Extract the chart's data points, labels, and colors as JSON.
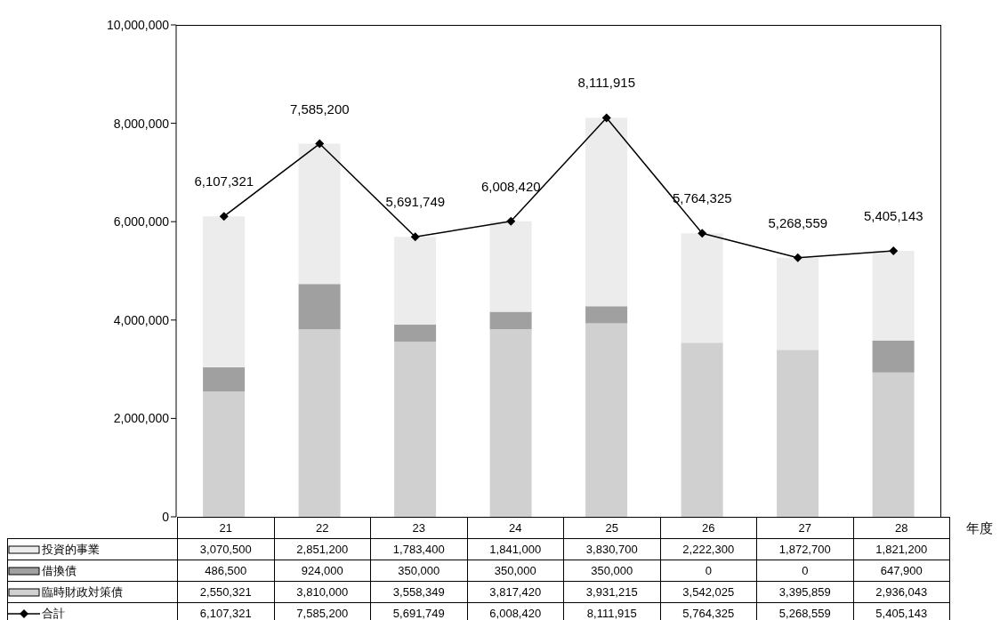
{
  "chart_data": {
    "type": "bar",
    "stacked": true,
    "xlabel": "年度",
    "categories": [
      "21",
      "22",
      "23",
      "24",
      "25",
      "26",
      "27",
      "28"
    ],
    "series": [
      {
        "name": "臨時財政対策債",
        "color": "#d0d0d0",
        "values": [
          2550321,
          3810000,
          3558349,
          3817420,
          3931215,
          3542025,
          3395859,
          2936043
        ],
        "value_labels": [
          "2,550,321",
          "3,810,000",
          "3,558,349",
          "3,817,420",
          "3,931,215",
          "3,542,025",
          "3,395,859",
          "2,936,043"
        ]
      },
      {
        "name": "借換債",
        "color": "#a0a0a0",
        "values": [
          486500,
          924000,
          350000,
          350000,
          350000,
          0,
          0,
          647900
        ],
        "value_labels": [
          "486,500",
          "924,000",
          "350,000",
          "350,000",
          "350,000",
          "0",
          "0",
          "647,900"
        ]
      },
      {
        "name": "投資的事業",
        "color": "#ececec",
        "values": [
          3070500,
          2851200,
          1783400,
          1841000,
          3830700,
          2222300,
          1872700,
          1821200
        ],
        "value_labels": [
          "3,070,500",
          "2,851,200",
          "1,783,400",
          "1,841,000",
          "3,830,700",
          "2,222,300",
          "1,872,700",
          "1,821,200"
        ]
      },
      {
        "name": "合計",
        "type": "line",
        "color": "#000000",
        "values": [
          6107321,
          7585200,
          5691749,
          6008420,
          8111915,
          5764325,
          5268559,
          5405143
        ],
        "value_labels": [
          "6,107,321",
          "7,585,200",
          "5,691,749",
          "6,008,420",
          "8,111,915",
          "5,764,325",
          "5,268,559",
          "5,405,143"
        ]
      }
    ],
    "ylim": [
      0,
      10000000
    ],
    "yticks": [
      0,
      {
        "value": 2000000,
        "label": "2,000,000"
      },
      {
        "value": 4000000,
        "label": "4,000,000"
      },
      {
        "value": 6000000,
        "label": "6,000,000"
      },
      {
        "value": 8000000,
        "label": "8,000,000"
      },
      {
        "value": 10000000,
        "label": "10,000,000"
      }
    ],
    "legend": "bottom",
    "marker": "diamond",
    "line_style": "solid"
  }
}
